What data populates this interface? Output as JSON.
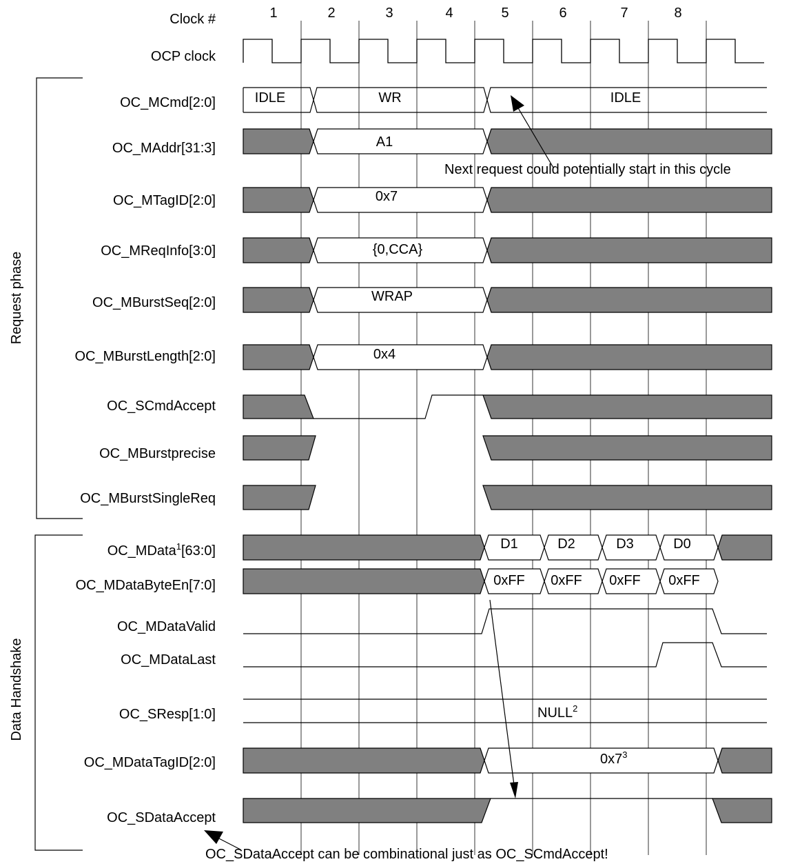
{
  "header": {
    "clock_label": "Clock #",
    "clock_numbers": [
      "1",
      "2",
      "3",
      "4",
      "5",
      "6",
      "7",
      "8"
    ],
    "ocp_clock_label": "OCP clock"
  },
  "groups": {
    "request": "Request phase",
    "data": "Data Handshake"
  },
  "signals": {
    "mcmd": {
      "name": "OC_MCmd[2:0]",
      "values": [
        "IDLE",
        "WR",
        "IDLE"
      ]
    },
    "maddr": {
      "name": "OC_MAddr[31:3]",
      "value": "A1"
    },
    "mtagid": {
      "name": "OC_MTagID[2:0]",
      "value": "0x7"
    },
    "mreqinfo": {
      "name": "OC_MReqInfo[3:0]",
      "value": "{0,CCA}"
    },
    "mburstseq": {
      "name": "OC_MBurstSeq[2:0]",
      "value": "WRAP"
    },
    "mburstlength": {
      "name": "OC_MBurstLength[2:0]",
      "value": "0x4"
    },
    "scmdaccept": {
      "name": "OC_SCmdAccept"
    },
    "mburstprecise": {
      "name": "OC_MBurstprecise"
    },
    "mburstsinglereq": {
      "name": "OC_MBurstSingleReq"
    },
    "mdata": {
      "name_prefix": "OC_MData",
      "name_sup": "1",
      "name_suffix": "[63:0]",
      "values": [
        "D1",
        "D2",
        "D3",
        "D0"
      ]
    },
    "mdatabyteen": {
      "name": "OC_MDataByteEn[7:0]",
      "values": [
        "0xFF",
        "0xFF",
        "0xFF",
        "0xFF"
      ]
    },
    "mdatavalid": {
      "name": "OC_MDataValid"
    },
    "mdatalast": {
      "name": "OC_MDataLast"
    },
    "sresp": {
      "name": "OC_SResp[1:0]",
      "value": "NULL",
      "value_sup": "2"
    },
    "mdatatagid": {
      "name": "OC_MDataTagID[2:0]",
      "value": "0x7",
      "value_sup": "3"
    },
    "sdataaccept": {
      "name": "OC_SDataAccept"
    }
  },
  "annotations": {
    "next_request": "Next request could potentially start in this cycle",
    "sdataaccept_note": "OC_SDataAccept can be combinational just as OC_SCmdAccept!"
  },
  "colors": {
    "dont_care_fill": "#808080",
    "line": "#000000",
    "grid": "#000000"
  }
}
